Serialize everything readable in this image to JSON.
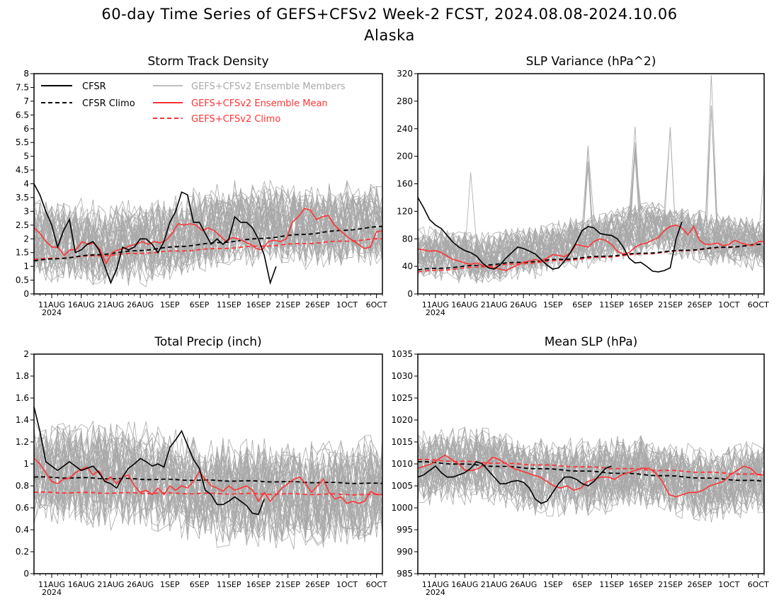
{
  "figure": {
    "title_line1": "60-day Time Series of GEFS+CFSv2 Week-2 FCST, 2024.08.08-2024.10.06",
    "title_line2": "Alaska",
    "x_tick_labels": [
      "11AUG",
      "16AUG",
      "21AUG",
      "26AUG",
      "1SEP",
      "6SEP",
      "11SEP",
      "16SEP",
      "21SEP",
      "26SEP",
      "1OCT",
      "6OCT"
    ],
    "x_year_label": "2024",
    "legend": {
      "cfsr": "CFSR",
      "cfsr_climo": "CFSR Climo",
      "members": "GEFS+CFSv2 Ensemble Members",
      "mean": "GEFS+CFSv2 Ensemble Mean",
      "climo": "GEFS+CFSv2 Climo"
    },
    "colors": {
      "cfsr": "#000000",
      "members": "#a9a9a9",
      "mean": "#ff3333"
    }
  },
  "chart_data": [
    {
      "id": "storm",
      "type": "line",
      "title": "Storm Track Density",
      "x_start": "2024-08-08",
      "x_end": "2024-10-06",
      "ylim": [
        0,
        8
      ],
      "yticks": [
        0,
        0.5,
        1,
        1.5,
        2,
        2.5,
        3,
        3.5,
        4,
        4.5,
        5,
        5.5,
        6,
        6.5,
        7,
        7.5,
        8
      ],
      "cfsr": [
        4.0,
        3.6,
        3.0,
        2.5,
        1.7,
        2.3,
        2.7,
        1.5,
        1.6,
        1.8,
        1.9,
        1.6,
        1.0,
        0.4,
        0.9,
        1.7,
        1.6,
        1.7,
        2.0,
        2.0,
        1.8,
        1.5,
        1.9,
        2.6,
        3.0,
        3.7,
        3.6,
        2.6,
        2.6,
        2.2,
        1.8,
        2.0,
        1.8,
        2.0,
        2.8,
        2.6,
        2.6,
        2.4,
        2.0,
        1.4,
        0.4,
        1.0
      ],
      "cfsr_climo": [
        1.2,
        2.45
      ],
      "ens_mean": [
        2.4,
        2.2,
        1.9,
        1.7,
        1.7,
        1.4,
        1.6,
        1.6,
        1.9,
        1.8,
        1.85,
        1.6,
        1.1,
        1.5,
        1.6,
        1.65,
        1.75,
        1.8,
        1.9,
        1.8,
        1.9,
        1.85,
        1.95,
        2.2,
        2.55,
        2.5,
        2.55,
        2.5,
        2.3,
        2.4,
        2.3,
        2.1,
        1.9,
        2.05,
        2.0,
        1.9,
        1.8,
        1.65,
        1.6,
        1.9,
        1.95,
        1.9,
        2.0,
        2.6,
        2.8,
        3.1,
        3.05,
        2.7,
        2.8,
        2.85,
        2.5,
        2.3,
        2.1,
        1.95,
        1.8,
        1.65,
        1.7,
        2.25,
        2.3
      ],
      "ens_climo": [
        1.25,
        2.0
      ],
      "band_center": [
        2.1,
        1.8,
        1.9,
        2.4,
        2.6,
        2.4,
        2.6
      ],
      "band_spread": 1.6
    },
    {
      "id": "slpvar",
      "type": "line",
      "title": "SLP Variance (hPa^2)",
      "x_start": "2024-08-08",
      "x_end": "2024-10-06",
      "ylim": [
        0,
        320
      ],
      "yticks": [
        0,
        40,
        80,
        120,
        160,
        200,
        240,
        280,
        320
      ],
      "cfsr": [
        140,
        125,
        108,
        100,
        95,
        85,
        75,
        68,
        63,
        60,
        55,
        45,
        38,
        36,
        42,
        52,
        60,
        68,
        66,
        62,
        58,
        50,
        42,
        36,
        38,
        48,
        60,
        75,
        92,
        98,
        96,
        88,
        86,
        85,
        80,
        68,
        52,
        45,
        46,
        40,
        33,
        32,
        34,
        38,
        80,
        105
      ],
      "cfsr_climo": [
        35,
        72
      ],
      "ens_mean": [
        65,
        64,
        62,
        63,
        60,
        55,
        50,
        48,
        45,
        43,
        45,
        42,
        40,
        38,
        36,
        34,
        38,
        42,
        46,
        48,
        50,
        48,
        52,
        57,
        56,
        54,
        60,
        72,
        70,
        68,
        76,
        80,
        78,
        72,
        62,
        58,
        60,
        68,
        72,
        74,
        78,
        82,
        92,
        98,
        100,
        96,
        86,
        98,
        78,
        72,
        72,
        74,
        70,
        72,
        78,
        74,
        72,
        70,
        76,
        76
      ],
      "ens_climo": [
        32,
        72
      ],
      "band_center": [
        60,
        48,
        60,
        75,
        95,
        80,
        70
      ],
      "band_spread": 40,
      "spikes": [
        {
          "day": 9,
          "value": 200
        },
        {
          "day": 29,
          "value": 230
        },
        {
          "day": 37,
          "value": 250
        },
        {
          "day": 43,
          "value": 270
        },
        {
          "day": 50,
          "value": 320
        },
        {
          "day": 59,
          "value": 190
        }
      ]
    },
    {
      "id": "precip",
      "type": "line",
      "title": "Total Precip (inch)",
      "x_start": "2024-08-08",
      "x_end": "2024-10-06",
      "ylim": [
        0,
        2
      ],
      "yticks": [
        0,
        0.2,
        0.4,
        0.6,
        0.8,
        1,
        1.2,
        1.4,
        1.6,
        1.8,
        2
      ],
      "cfsr": [
        1.52,
        1.3,
        1.02,
        0.98,
        0.94,
        0.98,
        1.02,
        0.98,
        0.94,
        0.96,
        0.98,
        0.92,
        0.84,
        0.82,
        0.78,
        0.88,
        0.96,
        1.0,
        1.05,
        1.02,
        0.98,
        1.0,
        0.97,
        1.15,
        1.22,
        1.3,
        1.17,
        1.04,
        0.96,
        0.76,
        0.72,
        0.63,
        0.63,
        0.66,
        0.7,
        0.66,
        0.62,
        0.55,
        0.54,
        0.68
      ],
      "cfsr_climo": [
        0.88,
        0.82
      ],
      "ens_mean": [
        1.05,
        1.0,
        0.92,
        0.84,
        0.82,
        0.86,
        0.87,
        0.92,
        0.95,
        0.97,
        0.9,
        0.94,
        0.84,
        0.88,
        0.82,
        0.88,
        0.9,
        0.8,
        0.74,
        0.76,
        0.72,
        0.78,
        0.72,
        0.8,
        0.76,
        0.8,
        0.78,
        0.84,
        0.93,
        0.86,
        0.8,
        0.78,
        0.75,
        0.8,
        0.76,
        0.78,
        0.8,
        0.76,
        0.66,
        0.74,
        0.66,
        0.72,
        0.78,
        0.82,
        0.86,
        0.88,
        0.82,
        0.74,
        0.8,
        0.86,
        0.74,
        0.68,
        0.7,
        0.64,
        0.66,
        0.64,
        0.66,
        0.75,
        0.72,
        0.72
      ],
      "ens_climo": [
        0.74,
        0.72
      ],
      "band_center": [
        0.95,
        0.9,
        0.9,
        0.75,
        0.75,
        0.72,
        0.8
      ],
      "band_spread": 0.5
    },
    {
      "id": "mslp",
      "type": "line",
      "title": "Mean SLP (hPa)",
      "x_start": "2024-08-08",
      "x_end": "2024-10-06",
      "ylim": [
        985,
        1035
      ],
      "yticks": [
        985,
        990,
        995,
        1000,
        1005,
        1010,
        1015,
        1020,
        1025,
        1030,
        1035
      ],
      "cfsr": [
        1007,
        1007.5,
        1008.5,
        1009.5,
        1008,
        1007,
        1007,
        1007.5,
        1008,
        1009,
        1010.5,
        1010,
        1008.5,
        1007,
        1005.5,
        1005.5,
        1006,
        1006.2,
        1005.8,
        1004.5,
        1002,
        1001,
        1001.5,
        1003.5,
        1005.5,
        1007,
        1007,
        1006.5,
        1005.5,
        1005,
        1006,
        1007.5,
        1009,
        1009.5
      ],
      "cfsr_climo": [
        1010.5,
        1006
      ],
      "ens_mean": [
        1009,
        1009.5,
        1010,
        1011,
        1012,
        1011,
        1010,
        1008.5,
        1008.5,
        1009,
        1010,
        1011.5,
        1011,
        1010,
        1009,
        1008.5,
        1008,
        1007.5,
        1007,
        1006,
        1005,
        1004.5,
        1005,
        1004,
        1004.5,
        1006,
        1006.5,
        1007,
        1007,
        1006.5,
        1007.5,
        1008,
        1008.5,
        1009,
        1009,
        1008,
        1006,
        1003,
        1002.5,
        1003,
        1003.5,
        1003.5,
        1004,
        1005,
        1005.5,
        1006,
        1007.5,
        1008.5,
        1009.5,
        1009,
        1007.5,
        1007.5
      ],
      "ens_climo": [
        1011,
        1007.5
      ],
      "band_center": [
        1009,
        1010,
        1007,
        1007,
        1008,
        1005,
        1007
      ],
      "band_spread": 9
    }
  ]
}
